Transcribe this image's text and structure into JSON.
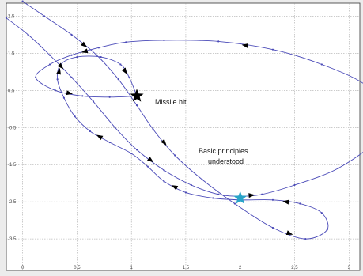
{
  "chart_data": {
    "type": "line",
    "title": "",
    "xlabel": "",
    "ylabel": "",
    "grid": true,
    "xlim": [
      -0.15,
      3.1
    ],
    "ylim": [
      -4.35,
      2.85
    ],
    "xticks": [
      0,
      0.5,
      1,
      1.5,
      2,
      2.5,
      3
    ],
    "xtick_labels": [
      "0",
      "0.5",
      "1",
      "1.5",
      "2",
      "2.5",
      "3"
    ],
    "yticks": [
      2.5,
      1.5,
      0.5,
      -0.5,
      -1.5,
      -2.5,
      -3.5
    ],
    "ytick_labels": [
      "2.5",
      "1.5",
      "0.5",
      "-0.5",
      "-1.5",
      "-2.5",
      "-3.5"
    ],
    "series": [
      {
        "color": "#4a4ab8",
        "x": [
          0.0,
          0.2,
          0.45,
          0.68,
          0.88,
          1.05,
          1.2,
          1.4,
          1.65,
          1.95,
          2.3,
          2.6,
          2.8,
          2.75,
          2.55,
          2.3,
          2.0,
          1.75,
          1.5,
          1.3,
          1.15,
          1.0,
          0.8,
          0.62,
          0.48,
          0.38,
          0.32,
          0.35,
          0.5,
          0.72,
          0.9,
          0.98,
          1.05
        ],
        "y": [
          2.9,
          2.5,
          2.0,
          1.45,
          0.8,
          0.1,
          -0.55,
          -1.25,
          -1.9,
          -2.55,
          -3.2,
          -3.5,
          -3.25,
          -2.8,
          -2.55,
          -2.45,
          -2.45,
          -2.4,
          -2.25,
          -1.95,
          -1.55,
          -1.2,
          -0.9,
          -0.6,
          -0.2,
          0.3,
          0.8,
          1.2,
          1.4,
          1.4,
          1.2,
          0.85,
          0.35
        ]
      },
      {
        "color": "#4a4ab8",
        "x": [
          -0.15,
          0.05,
          0.25,
          0.45,
          0.65,
          0.85,
          1.05,
          1.3,
          1.55,
          1.8,
          2.0,
          2.2,
          2.5,
          2.9,
          3.25,
          3.35,
          3.15,
          2.75,
          2.3,
          1.8,
          1.3,
          0.95,
          0.7,
          0.45,
          0.25,
          0.12,
          0.3,
          0.55,
          0.8,
          1.05
        ],
        "y": [
          2.45,
          2.0,
          1.45,
          0.85,
          0.2,
          -0.5,
          -1.1,
          -1.65,
          -2.05,
          -2.3,
          -2.35,
          -2.3,
          -2.05,
          -1.6,
          -0.85,
          -0.1,
          0.65,
          1.2,
          1.6,
          1.82,
          1.85,
          1.8,
          1.65,
          1.45,
          1.2,
          0.85,
          0.5,
          0.35,
          0.32,
          0.35
        ]
      }
    ],
    "annotations": [
      {
        "text": "Missile hit",
        "x": 1.05,
        "y": 0.35,
        "color": "#000000",
        "type": "star-marker"
      },
      {
        "text": "Basic principles understood",
        "x": 2.0,
        "y": -2.4,
        "color": "#29a3c8",
        "type": "star-marker"
      }
    ]
  },
  "annotations_text": {
    "missile": "Missile hit",
    "basic_line1": "Basic principles",
    "basic_line2": "understood"
  }
}
